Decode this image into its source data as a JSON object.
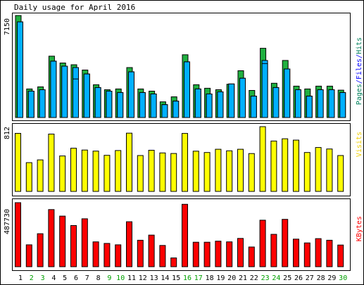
{
  "chart_data": [
    {
      "type": "bar",
      "title": "Daily usage for April 2016",
      "ylabel_parts": [
        {
          "text": "Pages",
          "color": "#00805c"
        },
        {
          "text": "/",
          "color": "#0000ff"
        },
        {
          "text": "Files",
          "color": "#0000ff"
        },
        {
          "text": "/",
          "color": "#0000ff"
        },
        {
          "text": "Hits",
          "color": "#00805c"
        }
      ],
      "ytick": "7150",
      "ylim": [
        0,
        7150
      ],
      "categories": [
        "1",
        "2",
        "3",
        "4",
        "5",
        "6",
        "7",
        "8",
        "9",
        "10",
        "11",
        "12",
        "13",
        "14",
        "15",
        "16",
        "17",
        "18",
        "19",
        "20",
        "21",
        "22",
        "23",
        "24",
        "25",
        "26",
        "27",
        "28",
        "29",
        "30"
      ],
      "weekend_days": [
        "2",
        "3",
        "9",
        "10",
        "16",
        "17",
        "23",
        "24",
        "30"
      ],
      "series": [
        {
          "name": "Hits",
          "color": "#20b040",
          "values": [
            7150,
            2000,
            2150,
            4300,
            3820,
            3700,
            3330,
            2300,
            1950,
            2000,
            3500,
            2000,
            1850,
            1100,
            1450,
            4400,
            2300,
            2050,
            1950,
            2330,
            3280,
            1900,
            4850,
            2400,
            4000,
            2200,
            2000,
            2200,
            2200,
            1920
          ]
        },
        {
          "name": "Files",
          "color": "#00b0ff",
          "values": [
            6700,
            1850,
            1950,
            3950,
            3600,
            3500,
            3050,
            2100,
            1850,
            1750,
            3200,
            1750,
            1650,
            900,
            1150,
            3900,
            2000,
            1650,
            1800,
            2350,
            2750,
            1500,
            4000,
            2100,
            3400,
            1950,
            1500,
            1950,
            1950,
            1750
          ]
        },
        {
          "name": "Pages",
          "color": "#00b0ff",
          "values": [
            6700,
            1850,
            1950,
            3950,
            3600,
            2700,
            3050,
            2100,
            1850,
            1750,
            3200,
            1750,
            1650,
            900,
            1150,
            3900,
            2000,
            1650,
            1800,
            2350,
            2750,
            1500,
            3780,
            2100,
            3400,
            1950,
            1500,
            1950,
            1950,
            1750
          ]
        }
      ]
    },
    {
      "type": "bar",
      "ylabel_parts": [
        {
          "text": "Visits",
          "color": "#f0d000"
        }
      ],
      "ytick": "812",
      "ylim": [
        0,
        812
      ],
      "categories": [
        "1",
        "2",
        "3",
        "4",
        "5",
        "6",
        "7",
        "8",
        "9",
        "10",
        "11",
        "12",
        "13",
        "14",
        "15",
        "16",
        "17",
        "18",
        "19",
        "20",
        "21",
        "22",
        "23",
        "24",
        "25",
        "26",
        "27",
        "28",
        "29",
        "30"
      ],
      "series": [
        {
          "name": "Visits",
          "color": "#ffff00",
          "values": [
            728,
            361,
            395,
            719,
            445,
            542,
            519,
            506,
            453,
            513,
            731,
            450,
            516,
            483,
            476,
            727,
            505,
            488,
            529,
            509,
            529,
            475,
            812,
            632,
            660,
            643,
            488,
            551,
            532,
            450
          ]
        }
      ]
    },
    {
      "type": "bar",
      "ylabel_parts": [
        {
          "text": "KBytes",
          "color": "#ff0000"
        }
      ],
      "ytick": "487730",
      "ylim": [
        0,
        487730
      ],
      "categories": [
        "1",
        "2",
        "3",
        "4",
        "5",
        "6",
        "7",
        "8",
        "9",
        "10",
        "11",
        "12",
        "13",
        "14",
        "15",
        "16",
        "17",
        "18",
        "19",
        "20",
        "21",
        "22",
        "23",
        "24",
        "25",
        "26",
        "27",
        "28",
        "29",
        "30"
      ],
      "series": [
        {
          "name": "KBytes",
          "color": "#ff0000",
          "values": [
            487730,
            166750,
            251440,
            435160,
            385230,
            313610,
            364930,
            188970,
            177500,
            166550,
            342740,
            201490,
            240500,
            161790,
            66910,
            475360,
            186390,
            186390,
            194790,
            188970,
            215250,
            150000,
            354200,
            246600,
            360500,
            210000,
            181000,
            214000,
            201490,
            165000
          ]
        }
      ]
    }
  ]
}
